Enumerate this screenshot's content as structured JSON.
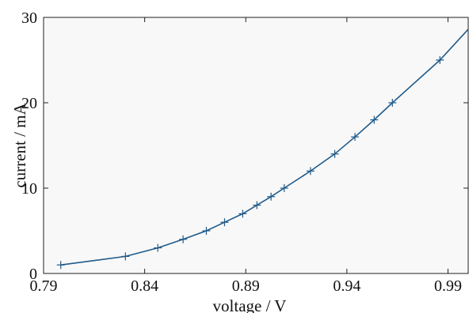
{
  "chart_data": {
    "type": "line",
    "xlabel": "voltage / V",
    "ylabel": "current / mA",
    "xlim": [
      0.79,
      1.0
    ],
    "ylim": [
      0,
      30
    ],
    "xticks": [
      "0.79",
      "0.84",
      "0.89",
      "0.94",
      "0.99"
    ],
    "xtick_values": [
      0.79,
      0.84,
      0.89,
      0.94,
      0.99
    ],
    "yticks": [
      "0",
      "10",
      "20",
      "30"
    ],
    "ytick_values": [
      0,
      10,
      20,
      30
    ],
    "grid": false,
    "colors": {
      "line": "#1f5a8a",
      "marker": "#1f5a8a",
      "plot_bg": "#f8f8f8"
    },
    "series": [
      {
        "x": [
          0.7985,
          0.8305,
          0.8465,
          0.859,
          0.8705,
          0.8795,
          0.8885,
          0.8955,
          0.9025,
          0.909,
          0.922,
          0.934,
          0.944,
          0.9535,
          0.9625,
          0.986
        ],
        "y": [
          1,
          2,
          3,
          4,
          5,
          6,
          7,
          8,
          9,
          10,
          12,
          14,
          16,
          18,
          20,
          25
        ],
        "marker": "+"
      }
    ],
    "fit_curve": {
      "x": [
        0.7985,
        0.8305,
        0.8465,
        0.859,
        0.8705,
        0.8795,
        0.8885,
        0.8955,
        0.9025,
        0.909,
        0.922,
        0.934,
        0.944,
        0.9535,
        0.9625,
        0.986,
        1.0
      ],
      "y": [
        1,
        2,
        3,
        4,
        5,
        6,
        7,
        8,
        9,
        10,
        12,
        14,
        16,
        18,
        20,
        25,
        28.6
      ]
    }
  }
}
